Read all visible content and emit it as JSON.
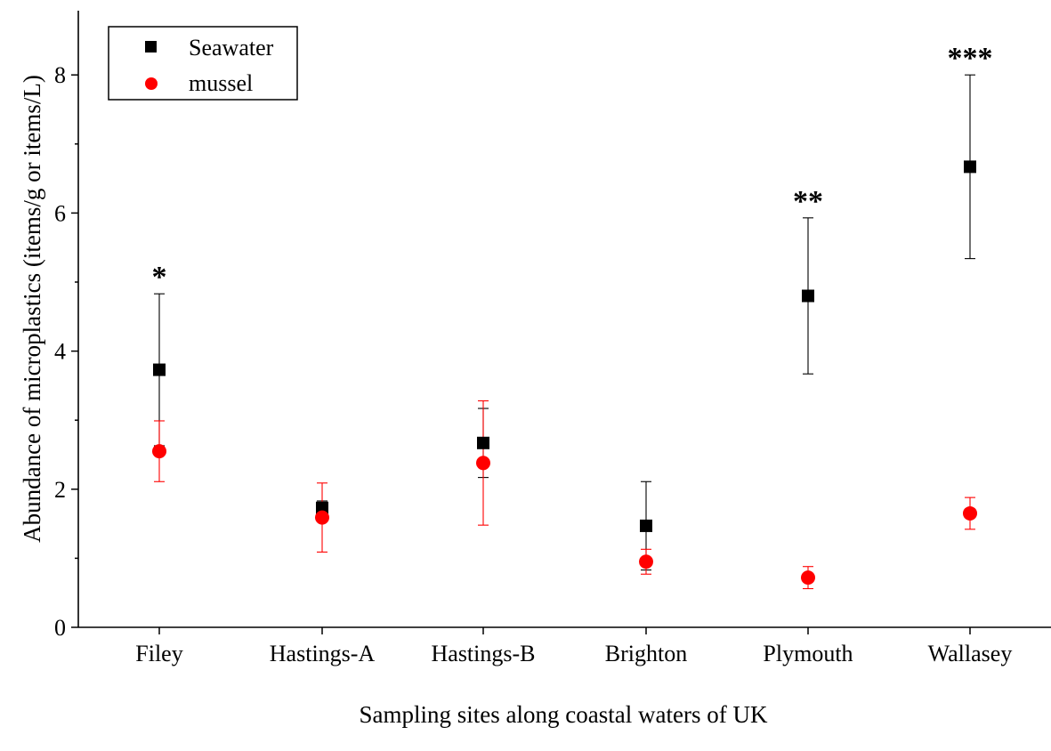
{
  "chart_data": {
    "type": "scatter",
    "xlabel": "Sampling sites along coastal waters of UK",
    "ylabel": "Abundance of microplastics (items/g or items/L)",
    "categories": [
      "Filey",
      "Hastings-A",
      "Hastings-B",
      "Brighton",
      "Plymouth",
      "Wallasey"
    ],
    "ylim": [
      0,
      8.9
    ],
    "yticks": [
      "0",
      "2",
      "4",
      "6",
      "8"
    ],
    "legend_position": "top-left",
    "series": [
      {
        "name": "Seawater",
        "marker": "square",
        "color": "#000000",
        "values": [
          3.73,
          1.73,
          2.67,
          1.47,
          4.8,
          6.67
        ],
        "error": [
          1.1,
          0.1,
          0.5,
          0.64,
          1.13,
          1.33
        ]
      },
      {
        "name": "mussel",
        "marker": "circle",
        "color": "#ff0000",
        "values": [
          2.55,
          1.59,
          2.38,
          0.95,
          0.72,
          1.65
        ],
        "error": [
          0.44,
          0.5,
          0.9,
          0.18,
          0.16,
          0.23
        ]
      }
    ],
    "annotations": [
      "*",
      "",
      "",
      "",
      "**",
      "***"
    ]
  }
}
